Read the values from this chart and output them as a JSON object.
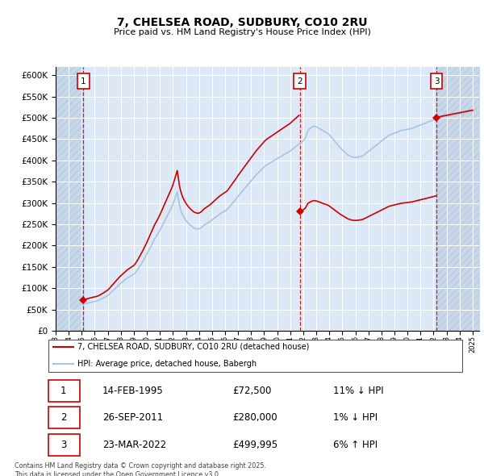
{
  "title": "7, CHELSEA ROAD, SUDBURY, CO10 2RU",
  "subtitle": "Price paid vs. HM Land Registry's House Price Index (HPI)",
  "legend_line1": "7, CHELSEA ROAD, SUDBURY, CO10 2RU (detached house)",
  "legend_line2": "HPI: Average price, detached house, Babergh",
  "footer": "Contains HM Land Registry data © Crown copyright and database right 2025.\nThis data is licensed under the Open Government Licence v3.0.",
  "sale_color": "#cc0000",
  "hpi_color": "#a8c4e0",
  "background_plot": "#dce8f5",
  "background_hatch_color": "#c8d8ea",
  "hatch_style": "////",
  "ylim": [
    0,
    620000
  ],
  "yticks": [
    0,
    50000,
    100000,
    150000,
    200000,
    250000,
    300000,
    350000,
    400000,
    450000,
    500000,
    550000,
    600000
  ],
  "xlim_start": 1993.0,
  "xlim_end": 2025.5,
  "transactions": [
    {
      "label": "1",
      "date": "14-FEB-1995",
      "price": 72500,
      "pct": "11%",
      "dir": "↓",
      "x": 1995.12
    },
    {
      "label": "2",
      "date": "26-SEP-2011",
      "price": 280000,
      "pct": "1%",
      "dir": "↓",
      "x": 2011.74
    },
    {
      "label": "3",
      "date": "23-MAR-2022",
      "price": 499995,
      "pct": "6%",
      "dir": "↑",
      "x": 2022.22
    }
  ],
  "hpi_years": [
    1995.0,
    1995.083,
    1995.167,
    1995.25,
    1995.333,
    1995.417,
    1995.5,
    1995.583,
    1995.667,
    1995.75,
    1995.833,
    1995.917,
    1996.0,
    1996.083,
    1996.167,
    1996.25,
    1996.333,
    1996.417,
    1996.5,
    1996.583,
    1996.667,
    1996.75,
    1996.833,
    1996.917,
    1997.0,
    1997.083,
    1997.167,
    1997.25,
    1997.333,
    1997.417,
    1997.5,
    1997.583,
    1997.667,
    1997.75,
    1997.833,
    1997.917,
    1998.0,
    1998.083,
    1998.167,
    1998.25,
    1998.333,
    1998.417,
    1998.5,
    1998.583,
    1998.667,
    1998.75,
    1998.833,
    1998.917,
    1999.0,
    1999.083,
    1999.167,
    1999.25,
    1999.333,
    1999.417,
    1999.5,
    1999.583,
    1999.667,
    1999.75,
    1999.833,
    1999.917,
    2000.0,
    2000.083,
    2000.167,
    2000.25,
    2000.333,
    2000.417,
    2000.5,
    2000.583,
    2000.667,
    2000.75,
    2000.833,
    2000.917,
    2001.0,
    2001.083,
    2001.167,
    2001.25,
    2001.333,
    2001.417,
    2001.5,
    2001.583,
    2001.667,
    2001.75,
    2001.833,
    2001.917,
    2002.0,
    2002.083,
    2002.167,
    2002.25,
    2002.333,
    2002.417,
    2002.5,
    2002.583,
    2002.667,
    2002.75,
    2002.833,
    2002.917,
    2003.0,
    2003.083,
    2003.167,
    2003.25,
    2003.333,
    2003.417,
    2003.5,
    2003.583,
    2003.667,
    2003.75,
    2003.833,
    2003.917,
    2004.0,
    2004.083,
    2004.167,
    2004.25,
    2004.333,
    2004.417,
    2004.5,
    2004.583,
    2004.667,
    2004.75,
    2004.833,
    2004.917,
    2005.0,
    2005.083,
    2005.167,
    2005.25,
    2005.333,
    2005.417,
    2005.5,
    2005.583,
    2005.667,
    2005.75,
    2005.833,
    2005.917,
    2006.0,
    2006.083,
    2006.167,
    2006.25,
    2006.333,
    2006.417,
    2006.5,
    2006.583,
    2006.667,
    2006.75,
    2006.833,
    2006.917,
    2007.0,
    2007.083,
    2007.167,
    2007.25,
    2007.333,
    2007.417,
    2007.5,
    2007.583,
    2007.667,
    2007.75,
    2007.833,
    2007.917,
    2008.0,
    2008.083,
    2008.167,
    2008.25,
    2008.333,
    2008.417,
    2008.5,
    2008.583,
    2008.667,
    2008.75,
    2008.833,
    2008.917,
    2009.0,
    2009.083,
    2009.167,
    2009.25,
    2009.333,
    2009.417,
    2009.5,
    2009.583,
    2009.667,
    2009.75,
    2009.833,
    2009.917,
    2010.0,
    2010.083,
    2010.167,
    2010.25,
    2010.333,
    2010.417,
    2010.5,
    2010.583,
    2010.667,
    2010.75,
    2010.833,
    2010.917,
    2011.0,
    2011.083,
    2011.167,
    2011.25,
    2011.333,
    2011.417,
    2011.5,
    2011.583,
    2011.667,
    2011.75,
    2011.833,
    2011.917,
    2012.0,
    2012.083,
    2012.167,
    2012.25,
    2012.333,
    2012.417,
    2012.5,
    2012.583,
    2012.667,
    2012.75,
    2012.833,
    2012.917,
    2013.0,
    2013.083,
    2013.167,
    2013.25,
    2013.333,
    2013.417,
    2013.5,
    2013.583,
    2013.667,
    2013.75,
    2013.833,
    2013.917,
    2014.0,
    2014.083,
    2014.167,
    2014.25,
    2014.333,
    2014.417,
    2014.5,
    2014.583,
    2014.667,
    2014.75,
    2014.833,
    2014.917,
    2015.0,
    2015.083,
    2015.167,
    2015.25,
    2015.333,
    2015.417,
    2015.5,
    2015.583,
    2015.667,
    2015.75,
    2015.833,
    2015.917,
    2016.0,
    2016.083,
    2016.167,
    2016.25,
    2016.333,
    2016.417,
    2016.5,
    2016.583,
    2016.667,
    2016.75,
    2016.833,
    2016.917,
    2017.0,
    2017.083,
    2017.167,
    2017.25,
    2017.333,
    2017.417,
    2017.5,
    2017.583,
    2017.667,
    2017.75,
    2017.833,
    2017.917,
    2018.0,
    2018.083,
    2018.167,
    2018.25,
    2018.333,
    2018.417,
    2018.5,
    2018.583,
    2018.667,
    2018.75,
    2018.833,
    2018.917,
    2019.0,
    2019.083,
    2019.167,
    2019.25,
    2019.333,
    2019.417,
    2019.5,
    2019.583,
    2019.667,
    2019.75,
    2019.833,
    2019.917,
    2020.0,
    2020.083,
    2020.167,
    2020.25,
    2020.333,
    2020.417,
    2020.5,
    2020.583,
    2020.667,
    2020.75,
    2020.833,
    2020.917,
    2021.0,
    2021.083,
    2021.167,
    2021.25,
    2021.333,
    2021.417,
    2021.5,
    2021.583,
    2021.667,
    2021.75,
    2021.833,
    2021.917,
    2022.0,
    2022.083,
    2022.167,
    2022.25,
    2022.333,
    2022.417,
    2022.5,
    2022.583,
    2022.667,
    2022.75,
    2022.833,
    2022.917,
    2023.0,
    2023.083,
    2023.167,
    2023.25,
    2023.333,
    2023.417,
    2023.5,
    2023.583,
    2023.667,
    2023.75,
    2023.833,
    2023.917,
    2024.0,
    2024.083,
    2024.167,
    2024.25,
    2024.333,
    2024.417,
    2024.5,
    2024.583,
    2024.667,
    2024.75,
    2024.833,
    2024.917,
    2025.0
  ],
  "hpi_values": [
    62000,
    62500,
    63200,
    63800,
    64500,
    65100,
    65800,
    66400,
    67000,
    67500,
    68000,
    68500,
    69000,
    69600,
    70200,
    71000,
    72000,
    73200,
    74500,
    75800,
    77200,
    78500,
    80000,
    81500,
    83000,
    85000,
    87500,
    90000,
    92500,
    95000,
    97500,
    100000,
    102500,
    105000,
    107500,
    110000,
    112000,
    114000,
    116000,
    118000,
    120000,
    122000,
    124000,
    125500,
    127000,
    128500,
    130000,
    131500,
    133000,
    135500,
    138500,
    142000,
    146000,
    150000,
    154000,
    158000,
    162000,
    166500,
    171000,
    175500,
    180000,
    185000,
    190000,
    195000,
    200000,
    205000,
    210000,
    215000,
    219000,
    223000,
    227000,
    231500,
    236000,
    241000,
    246000,
    251000,
    256000,
    261000,
    266000,
    271000,
    276000,
    281000,
    286000,
    291000,
    297000,
    304000,
    311000,
    318500,
    326000,
    310000,
    295000,
    285000,
    278000,
    272000,
    267000,
    263000,
    259000,
    256000,
    253000,
    250500,
    248000,
    246000,
    244000,
    242000,
    241000,
    240000,
    239500,
    239000,
    239500,
    240500,
    242000,
    244000,
    246500,
    248500,
    250000,
    251500,
    253000,
    254500,
    256000,
    258000,
    260000,
    262000,
    264000,
    266000,
    268000,
    270000,
    272000,
    274000,
    275500,
    277000,
    278500,
    280000,
    281500,
    283000,
    285000,
    287500,
    290500,
    294000,
    297000,
    300000,
    303000,
    306000,
    309000,
    312500,
    316000,
    319000,
    322000,
    325000,
    328000,
    331000,
    334000,
    337000,
    340000,
    343000,
    346000,
    349000,
    352000,
    355000,
    358000,
    361000,
    364000,
    367000,
    369500,
    372000,
    374500,
    377000,
    379500,
    382000,
    384500,
    387000,
    389000,
    390500,
    392000,
    393500,
    395000,
    396500,
    398000,
    399500,
    401000,
    402500,
    404000,
    405500,
    407000,
    408500,
    410000,
    411500,
    413000,
    414500,
    416000,
    417500,
    419000,
    420500,
    422000,
    424000,
    426000,
    428000,
    430000,
    432000,
    434000,
    436000,
    438000,
    440000,
    442000,
    444000,
    446000,
    449000,
    453000,
    460000,
    468000,
    472000,
    474000,
    476000,
    478000,
    479500,
    480000,
    479500,
    478500,
    477500,
    476000,
    474500,
    473000,
    471500,
    470000,
    468500,
    467000,
    465500,
    464000,
    462500,
    460000,
    457000,
    454000,
    451000,
    448000,
    445000,
    442000,
    439000,
    436000,
    433000,
    430000,
    427500,
    425000,
    422500,
    420000,
    417500,
    415000,
    413000,
    411500,
    410000,
    409000,
    408000,
    407500,
    407000,
    407000,
    407000,
    407500,
    408000,
    408500,
    409000,
    410000,
    411000,
    413000,
    415000,
    417000,
    419000,
    421000,
    423000,
    425000,
    427000,
    429000,
    431000,
    433000,
    435000,
    437000,
    439000,
    441000,
    443000,
    445000,
    447000,
    449000,
    451000,
    453000,
    455000,
    457000,
    459000,
    460000,
    461000,
    462000,
    463000,
    464000,
    465000,
    466000,
    467000,
    468000,
    469000,
    470000,
    470500,
    471000,
    471500,
    472000,
    472500,
    473000,
    473500,
    474000,
    474500,
    475000,
    476000,
    477000,
    478000,
    479000,
    480000,
    481000,
    482000,
    483000,
    484000,
    485000,
    486000,
    487000,
    488000,
    489000,
    490000,
    491000,
    492000,
    493000,
    494000,
    495000,
    496000,
    497000,
    498000,
    499000,
    500000,
    500500,
    501000,
    501500,
    502000,
    502500,
    503000,
    503500,
    504000,
    504500,
    505000,
    505500,
    506000,
    506500,
    507000,
    507500,
    508000,
    508500,
    509000,
    509500,
    510000,
    510500,
    511000,
    511500,
    512000,
    512500,
    513000,
    513500,
    514000,
    514500,
    515000,
    515500
  ]
}
